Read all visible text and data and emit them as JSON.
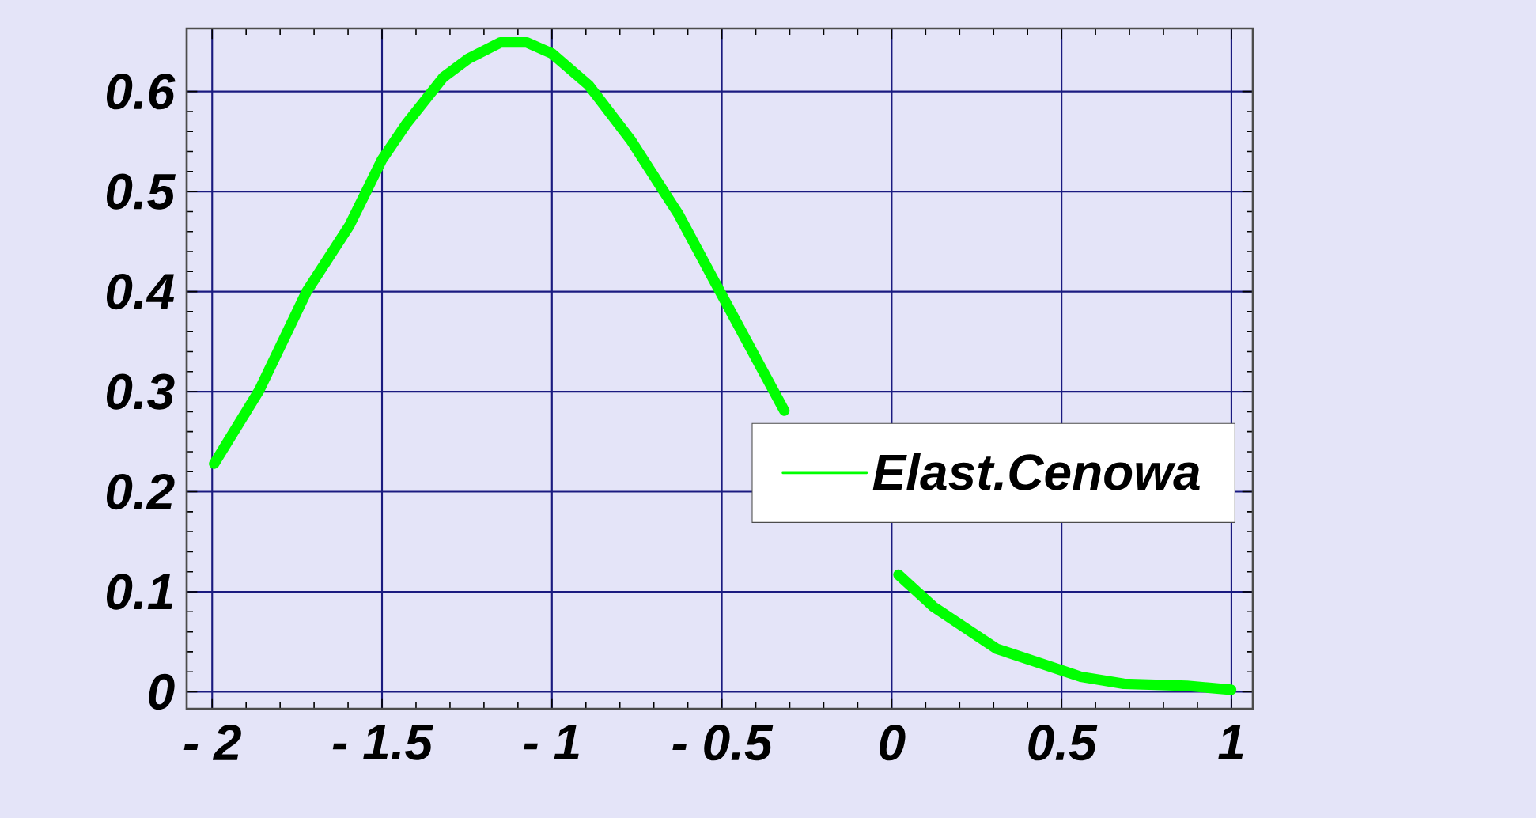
{
  "chart_data": {
    "type": "line",
    "x": [
      -1.994,
      -1.862,
      -1.722,
      -1.596,
      -1.5,
      -1.43,
      -1.32,
      -1.245,
      -1.152,
      -1.074,
      -1.0,
      -0.891,
      -0.767,
      -0.627,
      -0.51,
      -0.316,
      -0.15,
      0.02,
      0.123,
      0.309,
      0.495,
      0.557,
      0.683,
      0.869,
      0.999
    ],
    "series": [
      {
        "name": "Elast.Cenowa",
        "color": "#00ff00",
        "values": [
          0.228,
          0.301,
          0.4,
          0.466,
          0.532,
          0.567,
          0.614,
          0.633,
          0.649,
          0.649,
          0.638,
          0.606,
          0.551,
          0.477,
          0.403,
          0.281,
          null,
          0.117,
          0.085,
          0.043,
          0.022,
          0.015,
          0.008,
          0.006,
          0.002
        ]
      }
    ],
    "xlim": [
      -2.075,
      1.063
    ],
    "ylim": [
      -0.017,
      0.663
    ],
    "xticks": [
      {
        "value": -2,
        "label": "- 2"
      },
      {
        "value": -1.5,
        "label": "- 1.5"
      },
      {
        "value": -1,
        "label": "- 1"
      },
      {
        "value": -0.5,
        "label": "- 0.5"
      },
      0,
      0.5,
      1
    ],
    "yticks": [
      0,
      0.1,
      0.2,
      0.3,
      0.4,
      0.5,
      0.6
    ],
    "grid": true,
    "legend": "right",
    "marker": "none",
    "line_style": "solid"
  }
}
